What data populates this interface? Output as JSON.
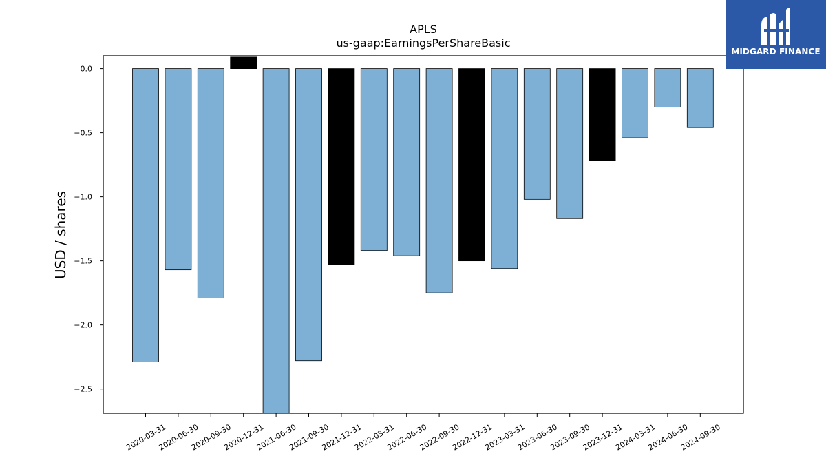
{
  "chart_data": {
    "type": "bar",
    "title": "APLS",
    "subtitle": "us-gaap:EarningsPerShareBasic",
    "xlabel": "",
    "ylabel": "USD / shares",
    "categories": [
      "2020-03-31",
      "2020-06-30",
      "2020-09-30",
      "2020-12-31",
      "2021-06-30",
      "2021-09-30",
      "2021-12-31",
      "2022-03-31",
      "2022-06-30",
      "2022-09-30",
      "2022-12-31",
      "2023-03-31",
      "2023-06-30",
      "2023-09-30",
      "2023-12-31",
      "2024-03-31",
      "2024-06-30",
      "2024-09-30"
    ],
    "values": [
      -2.29,
      -1.57,
      -1.79,
      0.09,
      -2.69,
      -2.28,
      -1.53,
      -1.42,
      -1.46,
      -1.75,
      -1.5,
      -1.56,
      -1.02,
      -1.17,
      -0.72,
      -0.54,
      -0.3,
      -0.46
    ],
    "annual": [
      false,
      false,
      false,
      true,
      false,
      false,
      true,
      false,
      false,
      false,
      true,
      false,
      false,
      false,
      true,
      false,
      false,
      false
    ],
    "ylim": [
      -2.69,
      0.1
    ],
    "yticks": [
      "0.0",
      "−0.5",
      "−1.0",
      "−1.5",
      "−2.0",
      "−2.5"
    ],
    "ytick_values": [
      0.0,
      -0.5,
      -1.0,
      -1.5,
      -2.0,
      -2.5
    ],
    "colors": {
      "quarterly": "#7eb0d5",
      "annual": "#000000",
      "edge": "#000000"
    },
    "grid": false,
    "legend": "none"
  },
  "logo": {
    "name": "MIDGARD FINANCE",
    "background": "#2b59a8"
  }
}
